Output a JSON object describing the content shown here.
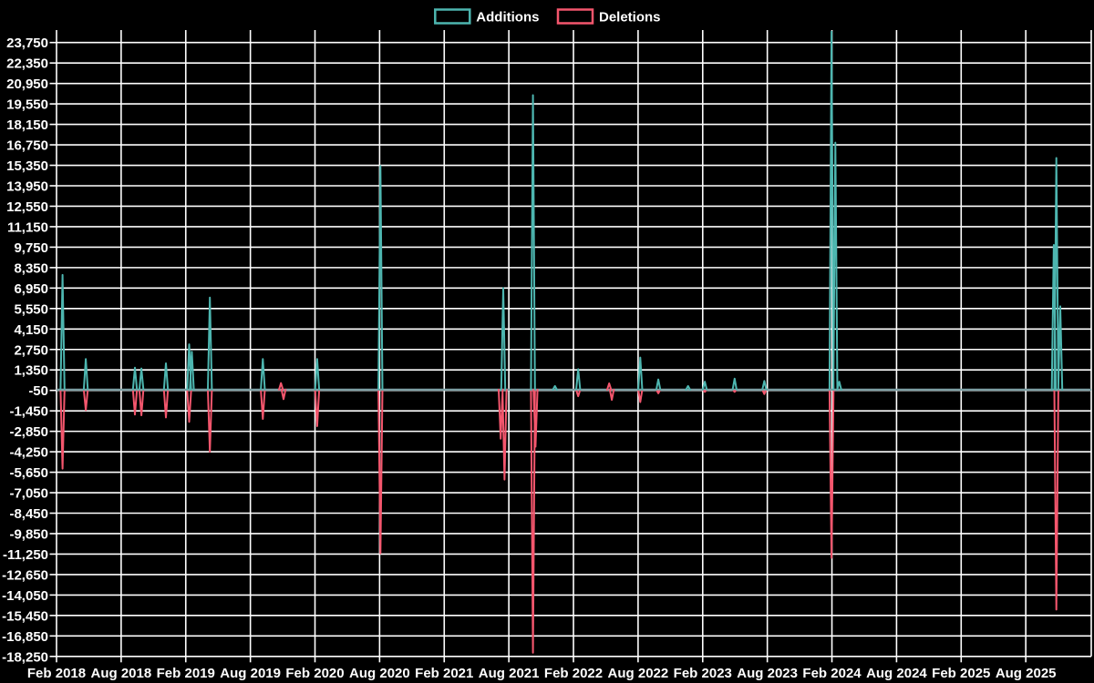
{
  "legend": {
    "items": [
      {
        "label": "Additions",
        "color": "#4db6b0"
      },
      {
        "label": "Deletions",
        "color": "#f4566d"
      }
    ]
  },
  "colors": {
    "background": "#000000",
    "gridline": "#ffffff",
    "baseline": "#7d9fa4",
    "additions": "#4db6b0",
    "deletions": "#f4566d",
    "tick_text": "#ffffff"
  },
  "chart_data": {
    "type": "line",
    "title": "",
    "xlabel": "",
    "ylabel": "",
    "legend_position": "top-center",
    "grid": true,
    "y_tick_step": 1400,
    "ylim": [
      -18250,
      23750
    ],
    "y_tick_labels": [
      "23,750",
      "22,350",
      "20,950",
      "19,550",
      "18,150",
      "16,750",
      "15,350",
      "13,950",
      "12,550",
      "11,150",
      "9,750",
      "8,350",
      "6,950",
      "5,550",
      "4,150",
      "2,750",
      "1,350",
      "-50",
      "-1,450",
      "-2,850",
      "-4,250",
      "-5,650",
      "-7,050",
      "-8,450",
      "-9,850",
      "-11,250",
      "-12,650",
      "-14,050",
      "-15,450",
      "-16,850",
      "-18,250"
    ],
    "x_tick_labels": [
      "Feb 2018",
      "Aug 2018",
      "Feb 2019",
      "Aug 2019",
      "Feb 2020",
      "Aug 2020",
      "Feb 2021",
      "Aug 2021",
      "Feb 2022",
      "Aug 2022",
      "Feb 2023",
      "Aug 2023",
      "Feb 2024",
      "Aug 2024",
      "Feb 2025",
      "Aug 2025"
    ],
    "x_domain_years": [
      2018.0833,
      2026.09
    ],
    "x_tick_start_year": 2018.0833,
    "x_tick_interval_years": 0.5,
    "baseline_value": 0,
    "series": [
      {
        "name": "Additions",
        "color": "#4db6b0",
        "points": [
          [
            2018.13,
            7850
          ],
          [
            2018.31,
            2100
          ],
          [
            2018.69,
            1500
          ],
          [
            2018.74,
            1450
          ],
          [
            2018.93,
            1800
          ],
          [
            2019.11,
            3100
          ],
          [
            2019.13,
            2600
          ],
          [
            2019.27,
            6300
          ],
          [
            2019.68,
            2100
          ],
          [
            2020.1,
            2100
          ],
          [
            2020.59,
            15300
          ],
          [
            2021.54,
            6950
          ],
          [
            2021.77,
            20150
          ],
          [
            2021.94,
            250
          ],
          [
            2022.12,
            1400
          ],
          [
            2022.6,
            2200
          ],
          [
            2022.74,
            700
          ],
          [
            2022.97,
            250
          ],
          [
            2023.1,
            550
          ],
          [
            2023.33,
            750
          ],
          [
            2023.56,
            600
          ],
          [
            2024.08,
            24500
          ],
          [
            2024.11,
            16900
          ],
          [
            2024.14,
            550
          ],
          [
            2025.8,
            9900
          ],
          [
            2025.82,
            15850
          ],
          [
            2025.85,
            5700
          ]
        ]
      },
      {
        "name": "Deletions",
        "color": "#f4566d",
        "points": [
          [
            2018.13,
            -5400
          ],
          [
            2018.31,
            -1400
          ],
          [
            2018.69,
            -1700
          ],
          [
            2018.74,
            -1750
          ],
          [
            2018.93,
            -1900
          ],
          [
            2019.11,
            -2200
          ],
          [
            2019.27,
            -4250
          ],
          [
            2019.68,
            -2000
          ],
          [
            2019.82,
            450
          ],
          [
            2019.84,
            -650
          ],
          [
            2020.1,
            -2500
          ],
          [
            2020.59,
            -11200
          ],
          [
            2021.52,
            -3350
          ],
          [
            2021.55,
            -6150
          ],
          [
            2021.77,
            -18000
          ],
          [
            2021.79,
            -3900
          ],
          [
            2022.12,
            -450
          ],
          [
            2022.36,
            430
          ],
          [
            2022.38,
            -700
          ],
          [
            2022.6,
            -850
          ],
          [
            2022.74,
            -250
          ],
          [
            2023.1,
            -150
          ],
          [
            2023.33,
            -150
          ],
          [
            2023.56,
            -300
          ],
          [
            2024.08,
            -11500
          ],
          [
            2025.82,
            -15050
          ]
        ]
      }
    ]
  },
  "layout_note": "spike chart of code additions (up, teal) and deletions (down, pink) per period"
}
